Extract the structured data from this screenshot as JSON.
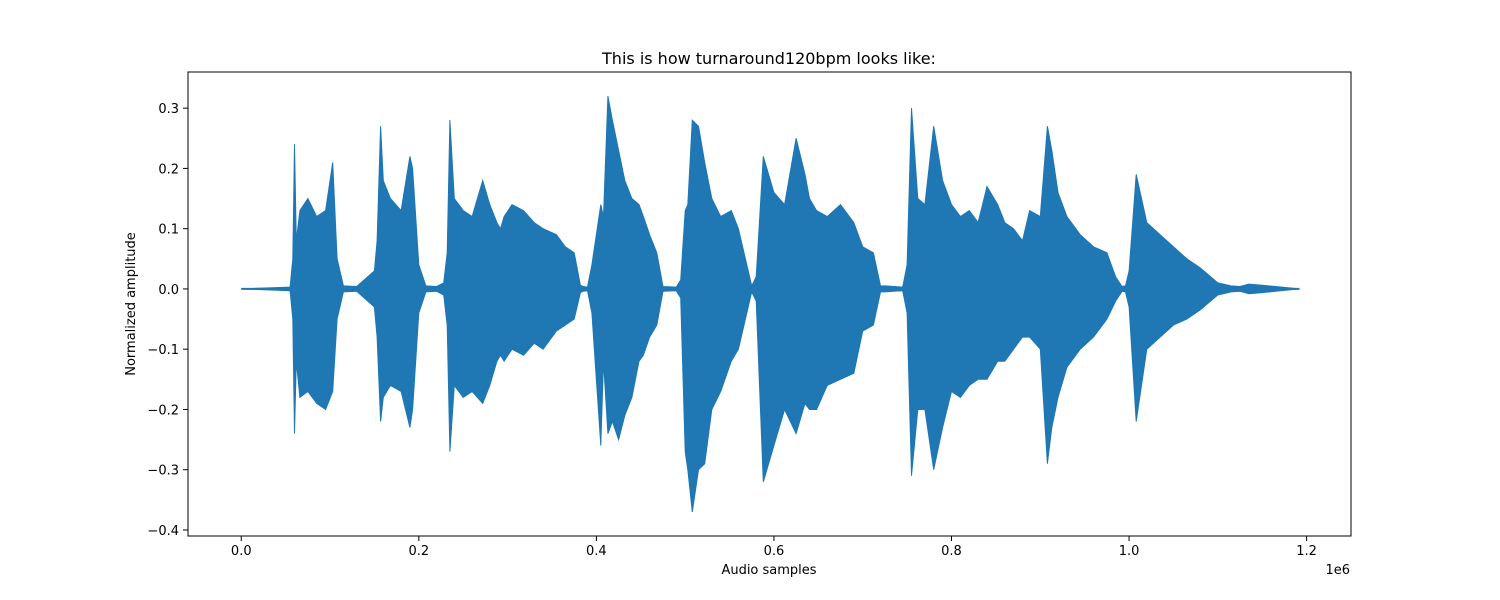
{
  "chart_data": {
    "type": "line",
    "title": "This is how turnaround120bpm looks like:",
    "xlabel": "Audio samples",
    "ylabel": "Normalized amplitude",
    "x_offset_label": "1e6",
    "xlim": [
      -60000,
      1250000
    ],
    "ylim": [
      -0.41,
      0.36
    ],
    "x_ticks": [
      0,
      200000,
      400000,
      600000,
      800000,
      1000000,
      1200000
    ],
    "x_tick_labels": [
      "0.0",
      "0.2",
      "0.4",
      "0.6",
      "0.8",
      "1.0",
      "1.2"
    ],
    "y_ticks": [
      -0.4,
      -0.3,
      -0.2,
      -0.1,
      0.0,
      0.1,
      0.2,
      0.3
    ],
    "y_tick_labels": [
      "−0.4",
      "−0.3",
      "−0.2",
      "−0.1",
      "0.0",
      "0.1",
      "0.2",
      "0.3"
    ],
    "grid": false,
    "series": [
      {
        "color": "#1f77b4",
        "x_range": [
          0,
          1192000
        ],
        "envelope": {
          "x": [
            0,
            55000,
            58000,
            60000,
            62000,
            66000,
            75000,
            85000,
            95000,
            103000,
            108000,
            115000,
            130000,
            150000,
            153000,
            157000,
            160000,
            168000,
            180000,
            190000,
            193000,
            200000,
            208000,
            220000,
            228000,
            232000,
            235000,
            240000,
            250000,
            260000,
            272000,
            280000,
            288000,
            292000,
            296000,
            305000,
            318000,
            330000,
            340000,
            355000,
            365000,
            375000,
            382000,
            385000,
            390000,
            395000,
            405000,
            408000,
            413000,
            418000,
            425000,
            432000,
            440000,
            448000,
            453000,
            460000,
            468000,
            475000,
            490000,
            495000,
            500000,
            503000,
            508000,
            515000,
            522000,
            530000,
            540000,
            552000,
            560000,
            575000,
            580000,
            588000,
            600000,
            612000,
            625000,
            635000,
            640000,
            648000,
            660000,
            675000,
            690000,
            700000,
            712000,
            720000,
            725000,
            735000,
            745000,
            750000,
            755000,
            762000,
            770000,
            780000,
            790000,
            800000,
            810000,
            820000,
            830000,
            840000,
            852000,
            860000,
            870000,
            880000,
            888000,
            900000,
            908000,
            913000,
            920000,
            930000,
            945000,
            960000,
            975000,
            985000,
            992000,
            996000,
            1000000,
            1008000,
            1020000,
            1035000,
            1050000,
            1065000,
            1080000,
            1100000,
            1115000,
            1125000,
            1135000,
            1150000,
            1165000,
            1192000
          ],
          "upper": [
            0.0,
            0.003,
            0.05,
            0.24,
            0.08,
            0.13,
            0.15,
            0.12,
            0.13,
            0.21,
            0.05,
            0.005,
            0.004,
            0.03,
            0.08,
            0.27,
            0.18,
            0.15,
            0.13,
            0.22,
            0.2,
            0.04,
            0.005,
            0.004,
            0.01,
            0.06,
            0.28,
            0.15,
            0.13,
            0.12,
            0.18,
            0.14,
            0.11,
            0.1,
            0.12,
            0.14,
            0.13,
            0.11,
            0.1,
            0.09,
            0.07,
            0.06,
            0.006,
            0.004,
            0.003,
            0.04,
            0.14,
            0.12,
            0.32,
            0.28,
            0.23,
            0.18,
            0.15,
            0.14,
            0.12,
            0.09,
            0.06,
            0.004,
            0.003,
            0.015,
            0.13,
            0.14,
            0.28,
            0.27,
            0.21,
            0.15,
            0.12,
            0.13,
            0.1,
            0.005,
            0.02,
            0.22,
            0.16,
            0.14,
            0.25,
            0.19,
            0.15,
            0.13,
            0.12,
            0.14,
            0.11,
            0.07,
            0.06,
            0.005,
            0.005,
            0.004,
            0.003,
            0.04,
            0.3,
            0.15,
            0.14,
            0.27,
            0.18,
            0.14,
            0.12,
            0.13,
            0.11,
            0.17,
            0.14,
            0.11,
            0.1,
            0.08,
            0.13,
            0.12,
            0.27,
            0.23,
            0.16,
            0.12,
            0.09,
            0.07,
            0.06,
            0.02,
            0.004,
            0.005,
            0.03,
            0.19,
            0.11,
            0.09,
            0.07,
            0.05,
            0.035,
            0.01,
            0.005,
            0.004,
            0.008,
            0.006,
            0.004,
            0.0
          ],
          "lower": [
            0.0,
            -0.003,
            -0.05,
            -0.24,
            -0.12,
            -0.18,
            -0.17,
            -0.19,
            -0.2,
            -0.17,
            -0.05,
            -0.005,
            -0.004,
            -0.03,
            -0.08,
            -0.22,
            -0.18,
            -0.16,
            -0.17,
            -0.23,
            -0.2,
            -0.04,
            -0.005,
            -0.004,
            -0.01,
            -0.06,
            -0.27,
            -0.16,
            -0.18,
            -0.17,
            -0.19,
            -0.16,
            -0.12,
            -0.11,
            -0.12,
            -0.1,
            -0.11,
            -0.09,
            -0.1,
            -0.07,
            -0.06,
            -0.05,
            -0.006,
            -0.004,
            -0.003,
            -0.04,
            -0.26,
            -0.12,
            -0.24,
            -0.22,
            -0.25,
            -0.21,
            -0.18,
            -0.12,
            -0.11,
            -0.08,
            -0.06,
            -0.004,
            -0.003,
            -0.015,
            -0.27,
            -0.3,
            -0.37,
            -0.3,
            -0.29,
            -0.2,
            -0.17,
            -0.12,
            -0.1,
            -0.005,
            -0.02,
            -0.32,
            -0.26,
            -0.2,
            -0.24,
            -0.19,
            -0.2,
            -0.2,
            -0.16,
            -0.15,
            -0.14,
            -0.07,
            -0.06,
            -0.005,
            -0.005,
            -0.004,
            -0.003,
            -0.04,
            -0.31,
            -0.2,
            -0.2,
            -0.3,
            -0.23,
            -0.17,
            -0.18,
            -0.16,
            -0.15,
            -0.15,
            -0.12,
            -0.12,
            -0.1,
            -0.08,
            -0.08,
            -0.1,
            -0.29,
            -0.23,
            -0.18,
            -0.13,
            -0.1,
            -0.08,
            -0.05,
            -0.02,
            -0.004,
            -0.005,
            -0.03,
            -0.22,
            -0.1,
            -0.08,
            -0.06,
            -0.05,
            -0.035,
            -0.01,
            -0.005,
            -0.004,
            -0.008,
            -0.006,
            -0.004,
            0.0
          ]
        }
      }
    ]
  }
}
